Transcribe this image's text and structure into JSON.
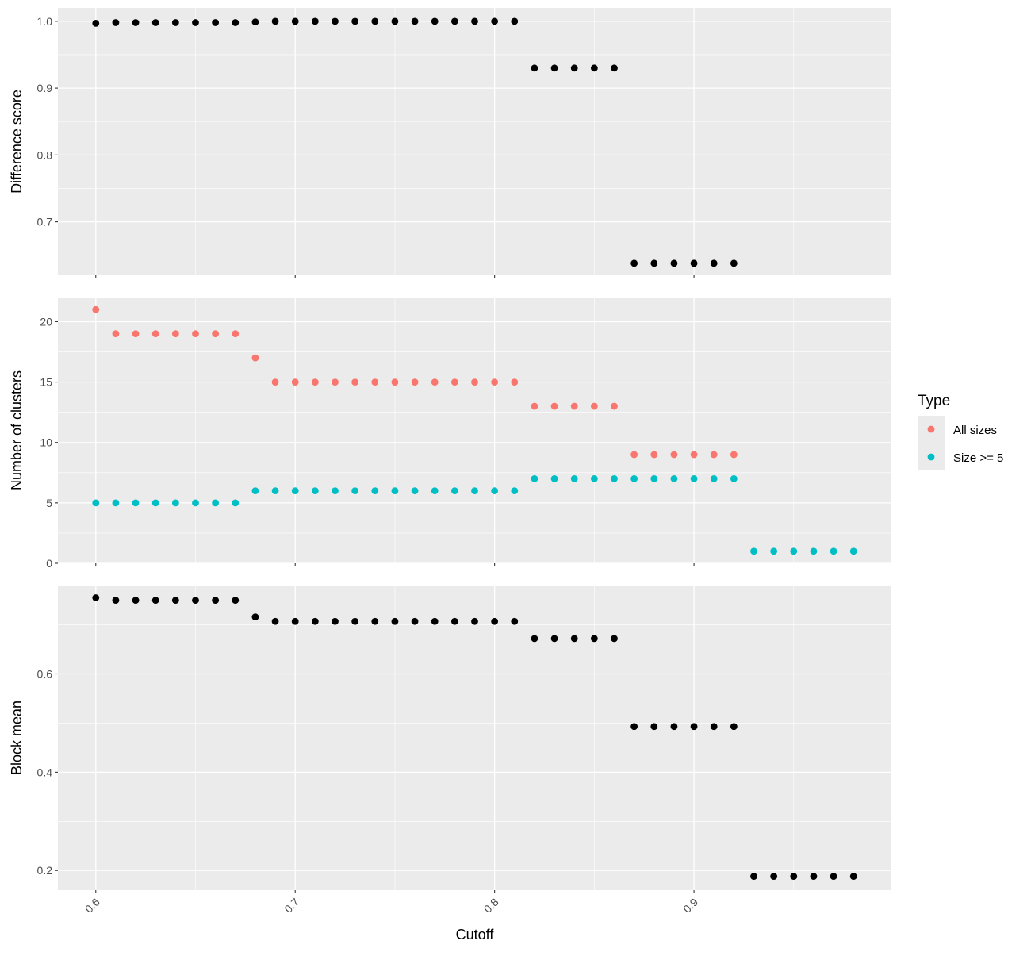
{
  "chart_data": {
    "type": "scatter",
    "layout": "faceted, 3 stacked panels sharing x axis",
    "xlabel": "Cutoff",
    "x_range": [
      0.581,
      0.999
    ],
    "x_ticks": [
      0.6,
      0.7,
      0.8,
      0.9
    ],
    "x_tick_labels": [
      "0.6",
      "0.7",
      "0.8",
      "0.9"
    ],
    "x_tick_label_rotation": -45,
    "grid": true,
    "background": "#ebebeb",
    "legend": {
      "title": "Type",
      "position": "right",
      "entries": [
        {
          "label": "All sizes",
          "color": "#f8766d"
        },
        {
          "label": "Size >= 5",
          "color": "#00bfc4"
        }
      ]
    },
    "panels": [
      {
        "ylabel": "Difference score",
        "y_range": [
          0.62,
          1.02
        ],
        "y_ticks": [
          0.7,
          0.8,
          0.9,
          1.0
        ],
        "y_tick_labels": [
          "0.7",
          "0.8",
          "0.9",
          "1.0"
        ],
        "series": [
          {
            "color": "#000000",
            "x": [
              0.6,
              0.61,
              0.62,
              0.63,
              0.64,
              0.65,
              0.66,
              0.67,
              0.68,
              0.69,
              0.7,
              0.71,
              0.72,
              0.73,
              0.74,
              0.75,
              0.76,
              0.77,
              0.78,
              0.79,
              0.8,
              0.81,
              0.82,
              0.83,
              0.84,
              0.85,
              0.86,
              0.87,
              0.88,
              0.89,
              0.9,
              0.91,
              0.92
            ],
            "y": [
              0.997,
              0.998,
              0.998,
              0.998,
              0.998,
              0.998,
              0.998,
              0.998,
              0.999,
              1.0,
              1.0,
              1.0,
              1.0,
              1.0,
              1.0,
              1.0,
              1.0,
              1.0,
              1.0,
              1.0,
              1.0,
              1.0,
              0.93,
              0.93,
              0.93,
              0.93,
              0.93,
              0.638,
              0.638,
              0.638,
              0.638,
              0.638,
              0.638
            ]
          }
        ]
      },
      {
        "ylabel": "Number of clusters",
        "y_range": [
          0,
          22
        ],
        "y_ticks": [
          0,
          5,
          10,
          15,
          20
        ],
        "y_tick_labels": [
          "0",
          "5",
          "10",
          "15",
          "20"
        ],
        "series": [
          {
            "name": "All sizes",
            "color": "#f8766d",
            "x": [
              0.6,
              0.61,
              0.62,
              0.63,
              0.64,
              0.65,
              0.66,
              0.67,
              0.68,
              0.69,
              0.7,
              0.71,
              0.72,
              0.73,
              0.74,
              0.75,
              0.76,
              0.77,
              0.78,
              0.79,
              0.8,
              0.81,
              0.82,
              0.83,
              0.84,
              0.85,
              0.86,
              0.87,
              0.88,
              0.89,
              0.9,
              0.91,
              0.92
            ],
            "y": [
              21,
              19,
              19,
              19,
              19,
              19,
              19,
              19,
              17,
              15,
              15,
              15,
              15,
              15,
              15,
              15,
              15,
              15,
              15,
              15,
              15,
              15,
              13,
              13,
              13,
              13,
              13,
              9,
              9,
              9,
              9,
              9,
              9
            ]
          },
          {
            "name": "Size >= 5",
            "color": "#00bfc4",
            "x": [
              0.6,
              0.61,
              0.62,
              0.63,
              0.64,
              0.65,
              0.66,
              0.67,
              0.68,
              0.69,
              0.7,
              0.71,
              0.72,
              0.73,
              0.74,
              0.75,
              0.76,
              0.77,
              0.78,
              0.79,
              0.8,
              0.81,
              0.82,
              0.83,
              0.84,
              0.85,
              0.86,
              0.87,
              0.88,
              0.89,
              0.9,
              0.91,
              0.92,
              0.93,
              0.94,
              0.95,
              0.96,
              0.97,
              0.98
            ],
            "y": [
              5,
              5,
              5,
              5,
              5,
              5,
              5,
              5,
              6,
              6,
              6,
              6,
              6,
              6,
              6,
              6,
              6,
              6,
              6,
              6,
              6,
              6,
              7,
              7,
              7,
              7,
              7,
              7,
              7,
              7,
              7,
              7,
              7,
              1,
              1,
              1,
              1,
              1,
              1
            ]
          }
        ]
      },
      {
        "ylabel": "Block mean",
        "y_range": [
          0.16,
          0.78
        ],
        "y_ticks": [
          0.2,
          0.4,
          0.6
        ],
        "y_tick_labels": [
          "0.2",
          "0.4",
          "0.6"
        ],
        "series": [
          {
            "color": "#000000",
            "x": [
              0.6,
              0.61,
              0.62,
              0.63,
              0.64,
              0.65,
              0.66,
              0.67,
              0.68,
              0.69,
              0.7,
              0.71,
              0.72,
              0.73,
              0.74,
              0.75,
              0.76,
              0.77,
              0.78,
              0.79,
              0.8,
              0.81,
              0.82,
              0.83,
              0.84,
              0.85,
              0.86,
              0.87,
              0.88,
              0.89,
              0.9,
              0.91,
              0.92,
              0.93,
              0.94,
              0.95,
              0.96,
              0.97,
              0.98
            ],
            "y": [
              0.755,
              0.75,
              0.75,
              0.75,
              0.75,
              0.75,
              0.75,
              0.75,
              0.716,
              0.707,
              0.707,
              0.707,
              0.707,
              0.707,
              0.707,
              0.707,
              0.707,
              0.707,
              0.707,
              0.707,
              0.707,
              0.707,
              0.672,
              0.672,
              0.672,
              0.672,
              0.672,
              0.493,
              0.493,
              0.493,
              0.493,
              0.493,
              0.493,
              0.188,
              0.188,
              0.188,
              0.188,
              0.188,
              0.188
            ]
          }
        ]
      }
    ]
  }
}
